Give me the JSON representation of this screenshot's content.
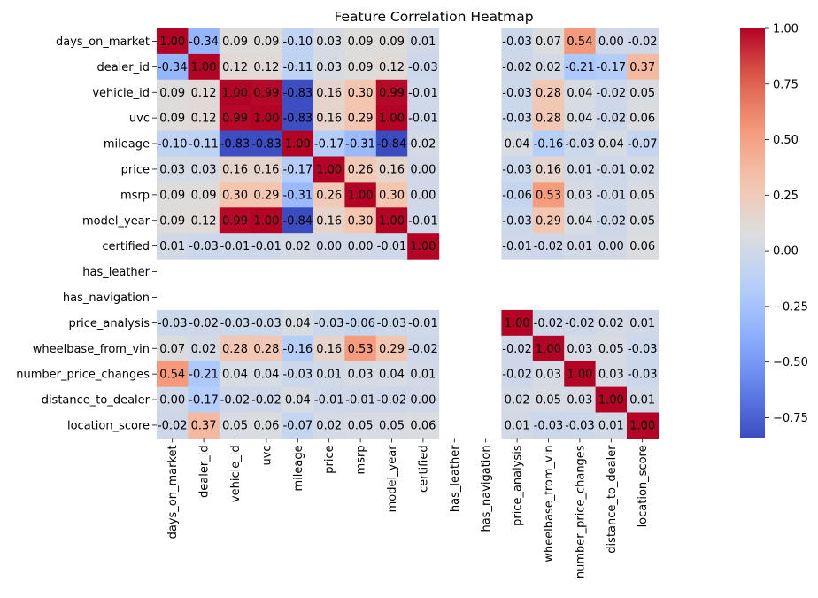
{
  "chart_data": {
    "type": "heatmap",
    "title": "Feature Correlation Heatmap",
    "xlabel": "",
    "ylabel": "",
    "labels": [
      "days_on_market",
      "dealer_id",
      "vehicle_id",
      "uvc",
      "mileage",
      "price",
      "msrp",
      "model_year",
      "certified",
      "has_leather",
      "has_navigation",
      "price_analysis",
      "wheelbase_from_vin",
      "number_price_changes",
      "distance_to_dealer",
      "location_score"
    ],
    "values": [
      [
        1.0,
        -0.34,
        0.09,
        0.09,
        -0.1,
        0.03,
        0.09,
        0.09,
        0.01,
        null,
        null,
        -0.03,
        0.07,
        0.54,
        0.0,
        -0.02
      ],
      [
        -0.34,
        1.0,
        0.12,
        0.12,
        -0.11,
        0.03,
        0.09,
        0.12,
        -0.03,
        null,
        null,
        -0.02,
        0.02,
        -0.21,
        -0.17,
        0.37
      ],
      [
        0.09,
        0.12,
        1.0,
        0.99,
        -0.83,
        0.16,
        0.3,
        0.99,
        -0.01,
        null,
        null,
        -0.03,
        0.28,
        0.04,
        -0.02,
        0.05
      ],
      [
        0.09,
        0.12,
        0.99,
        1.0,
        -0.83,
        0.16,
        0.29,
        1.0,
        -0.01,
        null,
        null,
        -0.03,
        0.28,
        0.04,
        -0.02,
        0.06
      ],
      [
        -0.1,
        -0.11,
        -0.83,
        -0.83,
        1.0,
        -0.17,
        -0.31,
        -0.84,
        0.02,
        null,
        null,
        0.04,
        -0.16,
        -0.03,
        0.04,
        -0.07
      ],
      [
        0.03,
        0.03,
        0.16,
        0.16,
        -0.17,
        1.0,
        0.26,
        0.16,
        -0.0,
        null,
        null,
        -0.03,
        0.16,
        0.01,
        -0.01,
        0.02
      ],
      [
        0.09,
        0.09,
        0.3,
        0.29,
        -0.31,
        0.26,
        1.0,
        0.3,
        0.0,
        null,
        null,
        -0.06,
        0.53,
        0.03,
        -0.01,
        0.05
      ],
      [
        0.09,
        0.12,
        0.99,
        1.0,
        -0.84,
        0.16,
        0.3,
        1.0,
        -0.01,
        null,
        null,
        -0.03,
        0.29,
        0.04,
        -0.02,
        0.05
      ],
      [
        0.01,
        -0.03,
        -0.01,
        -0.01,
        0.02,
        -0.0,
        0.0,
        -0.01,
        1.0,
        null,
        null,
        -0.01,
        -0.02,
        0.01,
        0.0,
        0.06
      ],
      [
        null,
        null,
        null,
        null,
        null,
        null,
        null,
        null,
        null,
        null,
        null,
        null,
        null,
        null,
        null,
        null
      ],
      [
        null,
        null,
        null,
        null,
        null,
        null,
        null,
        null,
        null,
        null,
        null,
        null,
        null,
        null,
        null,
        null
      ],
      [
        -0.03,
        -0.02,
        -0.03,
        -0.03,
        0.04,
        -0.03,
        -0.06,
        -0.03,
        -0.01,
        null,
        null,
        1.0,
        -0.02,
        -0.02,
        0.02,
        0.01
      ],
      [
        0.07,
        0.02,
        0.28,
        0.28,
        -0.16,
        0.16,
        0.53,
        0.29,
        -0.02,
        null,
        null,
        -0.02,
        1.0,
        0.03,
        0.05,
        -0.03
      ],
      [
        0.54,
        -0.21,
        0.04,
        0.04,
        -0.03,
        0.01,
        0.03,
        0.04,
        0.01,
        null,
        null,
        -0.02,
        0.03,
        1.0,
        0.03,
        -0.03
      ],
      [
        0.0,
        -0.17,
        -0.02,
        -0.02,
        0.04,
        -0.01,
        -0.01,
        -0.02,
        0.0,
        null,
        null,
        0.02,
        0.05,
        0.03,
        1.0,
        0.01
      ],
      [
        -0.02,
        0.37,
        0.05,
        0.06,
        -0.07,
        0.02,
        0.05,
        0.05,
        0.06,
        null,
        null,
        0.01,
        -0.03,
        -0.03,
        0.01,
        1.0
      ]
    ],
    "colormap": "coolwarm",
    "color_range": [
      -0.84,
      1.0
    ],
    "colorbar": {
      "ticks": [
        1.0,
        0.75,
        0.5,
        0.25,
        0.0,
        -0.25,
        -0.5,
        -0.75
      ],
      "tick_labels": [
        "1.00",
        "0.75",
        "0.50",
        "0.25",
        "0.00",
        "−0.25",
        "−0.50",
        "−0.75"
      ]
    },
    "annotations": true,
    "grid": false
  }
}
